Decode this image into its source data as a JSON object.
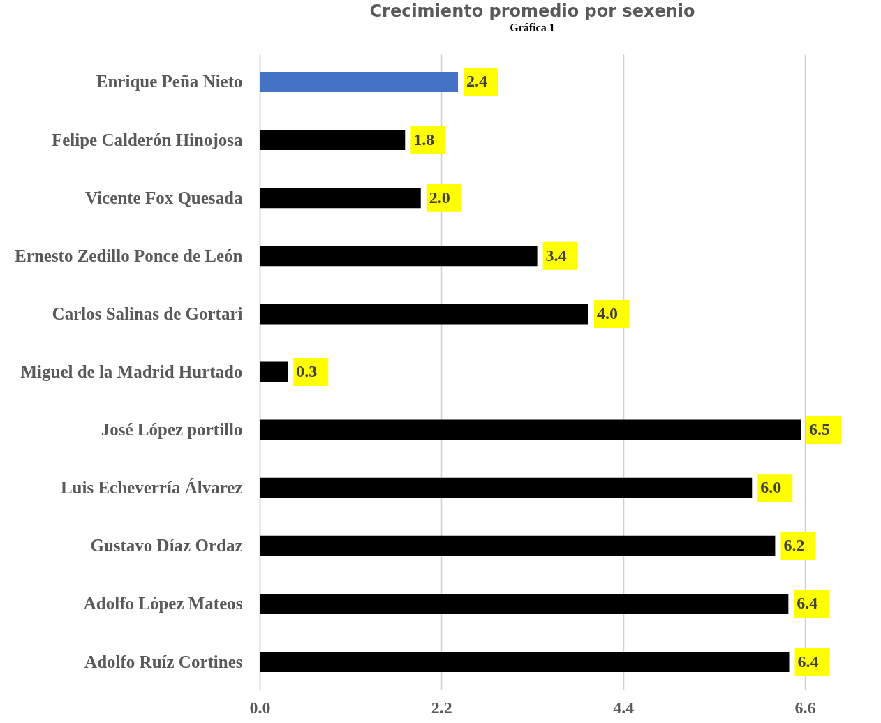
{
  "chart_data": {
    "type": "bar",
    "orientation": "horizontal",
    "title": "Crecimiento promedio por sexenio",
    "annotations": [
      "Gráfica 1"
    ],
    "categories": [
      "Enrique Peña Nieto",
      "Felipe Calderón Hinojosa",
      "Vicente Fox Quesada",
      "Ernesto Zedillo Ponce de León",
      "Carlos Salinas de Gortari",
      "Miguel de la Madrid Hurtado",
      "José López portillo",
      "Luis Echeverría Álvarez",
      "Gustavo Díaz Ordaz",
      "Adolfo López Mateos",
      "Adolfo Ruíz Cortines"
    ],
    "values": [
      2.4,
      1.76,
      1.95,
      3.36,
      3.98,
      0.34,
      6.55,
      5.96,
      6.24,
      6.4,
      6.41
    ],
    "value_labels": [
      "2.4",
      "1.8",
      "2.0",
      "3.4",
      "4.0",
      "0.3",
      "6.5",
      "6.0",
      "6.2",
      "6.4",
      "6.4"
    ],
    "colors": [
      "#4472c4",
      "#000000",
      "#000000",
      "#000000",
      "#000000",
      "#000000",
      "#000000",
      "#000000",
      "#000000",
      "#000000",
      "#000000"
    ],
    "xlim": [
      0,
      6.6
    ],
    "xticks": [
      {
        "value": 0,
        "label": "0.0"
      },
      2.2,
      4.4,
      6.6
    ],
    "grid": "x",
    "legend": false
  }
}
